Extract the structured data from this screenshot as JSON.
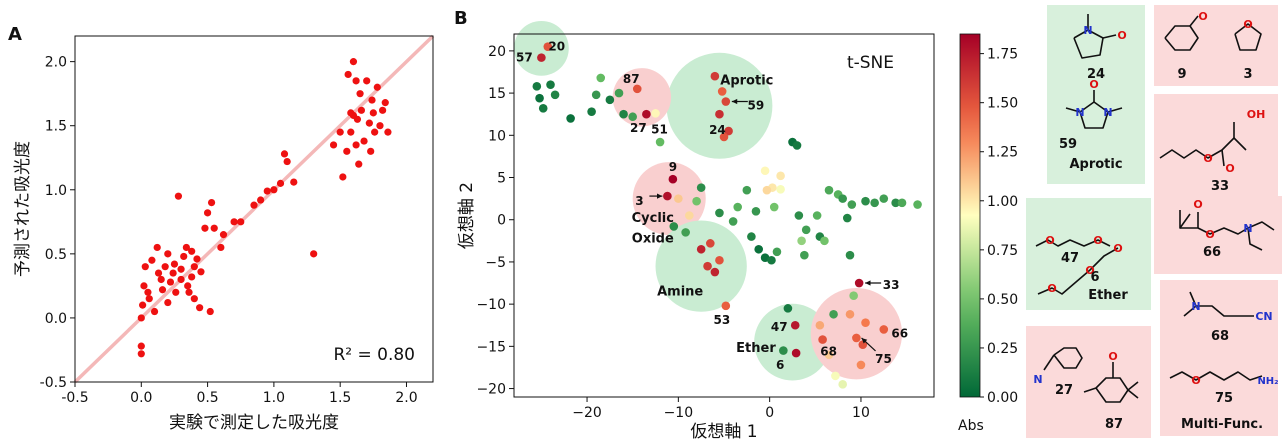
{
  "panel_a": {
    "letter": "A",
    "r2_text": "R² = 0.80"
  },
  "panel_b": {
    "letter": "B",
    "plot_title": "t-SNE",
    "cluster_labels": [
      "Aprotic",
      "Cyclic",
      "Oxide",
      "Amine",
      "Ether"
    ],
    "cbar_label": "Abs"
  },
  "colors": {
    "scatter_a": "#ee1111",
    "diag_line": "#f4b8b8",
    "green_box": "#d8f0dc",
    "pink_box": "#fbdada",
    "circle_green": "#c9ecd2",
    "circle_pink": "#f9cfcf"
  },
  "structures": {
    "boxes": [
      {
        "kind": "green",
        "title": "Aprotic",
        "labels": [
          "24",
          "59"
        ]
      },
      {
        "kind": "pink",
        "title": "",
        "labels": [
          "9",
          "3"
        ]
      },
      {
        "kind": "pink",
        "title": "",
        "labels": [
          "33",
          "66"
        ]
      },
      {
        "kind": "green",
        "title": "Ether",
        "labels": [
          "47",
          "6"
        ]
      },
      {
        "kind": "pink",
        "title": "Multi-Func.",
        "labels": [
          "68",
          "75"
        ]
      },
      {
        "kind": "pink",
        "title": "",
        "labels": [
          "27",
          "87"
        ]
      }
    ]
  },
  "chart_data": [
    {
      "type": "scatter",
      "title": "",
      "xlabel": "実験で測定した吸光度",
      "ylabel": "予測された吸光度",
      "xlim": [
        -0.5,
        2.2
      ],
      "ylim": [
        -0.5,
        2.2
      ],
      "xticks": [
        "-0.5",
        "0.0",
        "0.5",
        "1.0",
        "1.5",
        "2.0"
      ],
      "yticks": [
        "-0.5",
        "0.0",
        "0.5",
        "1.0",
        "1.5",
        "2.0"
      ],
      "grid": false,
      "reference_line": "y = x",
      "annotation": "R² = 0.80",
      "points": [
        [
          0.0,
          -0.28
        ],
        [
          0.0,
          -0.22
        ],
        [
          0.0,
          0.0
        ],
        [
          0.01,
          0.1
        ],
        [
          0.02,
          0.25
        ],
        [
          0.03,
          0.4
        ],
        [
          0.05,
          0.2
        ],
        [
          0.06,
          0.15
        ],
        [
          0.08,
          0.45
        ],
        [
          0.1,
          0.05
        ],
        [
          0.12,
          0.55
        ],
        [
          0.13,
          0.35
        ],
        [
          0.15,
          0.3
        ],
        [
          0.16,
          0.22
        ],
        [
          0.18,
          0.4
        ],
        [
          0.2,
          0.5
        ],
        [
          0.2,
          0.12
        ],
        [
          0.22,
          0.28
        ],
        [
          0.24,
          0.35
        ],
        [
          0.25,
          0.42
        ],
        [
          0.26,
          0.2
        ],
        [
          0.28,
          0.95
        ],
        [
          0.3,
          0.38
        ],
        [
          0.3,
          0.3
        ],
        [
          0.32,
          0.48
        ],
        [
          0.34,
          0.55
        ],
        [
          0.35,
          0.25
        ],
        [
          0.36,
          0.2
        ],
        [
          0.38,
          0.52
        ],
        [
          0.38,
          0.32
        ],
        [
          0.4,
          0.4
        ],
        [
          0.4,
          0.15
        ],
        [
          0.42,
          0.46
        ],
        [
          0.44,
          0.08
        ],
        [
          0.45,
          0.36
        ],
        [
          0.48,
          0.7
        ],
        [
          0.5,
          0.82
        ],
        [
          0.52,
          0.05
        ],
        [
          0.53,
          0.9
        ],
        [
          0.55,
          0.7
        ],
        [
          0.6,
          0.55
        ],
        [
          0.62,
          0.65
        ],
        [
          0.7,
          0.75
        ],
        [
          0.75,
          0.75
        ],
        [
          0.85,
          0.88
        ],
        [
          0.9,
          0.92
        ],
        [
          0.95,
          0.99
        ],
        [
          1.0,
          1.0
        ],
        [
          1.05,
          1.05
        ],
        [
          1.08,
          1.28
        ],
        [
          1.1,
          1.22
        ],
        [
          1.15,
          1.06
        ],
        [
          1.3,
          0.5
        ],
        [
          1.45,
          1.35
        ],
        [
          1.5,
          1.45
        ],
        [
          1.52,
          1.1
        ],
        [
          1.55,
          1.3
        ],
        [
          1.56,
          1.9
        ],
        [
          1.58,
          1.45
        ],
        [
          1.6,
          2.0
        ],
        [
          1.6,
          1.58
        ],
        [
          1.62,
          1.35
        ],
        [
          1.63,
          1.55
        ],
        [
          1.64,
          1.2
        ],
        [
          1.65,
          1.75
        ],
        [
          1.66,
          1.62
        ],
        [
          1.68,
          1.38
        ],
        [
          1.7,
          1.85
        ],
        [
          1.72,
          1.52
        ],
        [
          1.73,
          1.3
        ],
        [
          1.74,
          1.7
        ],
        [
          1.75,
          1.6
        ],
        [
          1.76,
          1.45
        ],
        [
          1.78,
          1.8
        ],
        [
          1.8,
          1.5
        ],
        [
          1.82,
          1.62
        ],
        [
          1.84,
          1.68
        ],
        [
          1.86,
          1.45
        ],
        [
          1.58,
          1.6
        ],
        [
          1.62,
          1.85
        ]
      ]
    },
    {
      "type": "scatter",
      "title": "t-SNE",
      "xlabel": "仮想軸 1",
      "ylabel": "仮想軸 2",
      "xlim": [
        -28,
        18
      ],
      "ylim": [
        -21,
        22
      ],
      "xticks": [
        "−20",
        "−10",
        "0",
        "10"
      ],
      "yticks": [
        "−20",
        "−15",
        "−10",
        "−5",
        "0",
        "5",
        "10",
        "15",
        "20"
      ],
      "colorbar": {
        "label": "Abs",
        "min": 0.0,
        "max": 1.85,
        "ticks": [
          "0.00",
          "0.25",
          "0.50",
          "0.75",
          "1.00",
          "1.25",
          "1.50",
          "1.75"
        ]
      },
      "highlighted_clusters": [
        {
          "label": "Aprotic",
          "kind": "green",
          "x": -5.5,
          "y": 13.5,
          "r": 5.8
        },
        {
          "label": "",
          "kind": "green",
          "x": -25.0,
          "y": 20.3,
          "r": 3.0
        },
        {
          "label": "",
          "kind": "pink",
          "x": -14.0,
          "y": 14.5,
          "r": 3.2
        },
        {
          "label": "Cyclic Oxide",
          "kind": "pink",
          "x": -11.0,
          "y": 2.5,
          "r": 4.0
        },
        {
          "label": "Amine",
          "kind": "green",
          "x": -7.5,
          "y": -5.5,
          "r": 5.0
        },
        {
          "label": "Ether",
          "kind": "green",
          "x": 2.5,
          "y": -14.5,
          "r": 4.2
        },
        {
          "label": "",
          "kind": "pink",
          "x": 9.5,
          "y": -13.5,
          "r": 5.0
        }
      ],
      "labeled_points": [
        {
          "label": "20",
          "x": -24.3,
          "y": 20.5
        },
        {
          "label": "57",
          "x": -25.0,
          "y": 19.2
        },
        {
          "label": "87",
          "x": -14.5,
          "y": 15.5
        },
        {
          "label": "27",
          "x": -13.5,
          "y": 12.5
        },
        {
          "label": "51",
          "x": -12.5,
          "y": 12.6
        },
        {
          "label": "59",
          "x": -4.8,
          "y": 14.0
        },
        {
          "label": "24",
          "x": -5.5,
          "y": 12.5
        },
        {
          "label": "9",
          "x": -10.6,
          "y": 4.8
        },
        {
          "label": "3",
          "x": -11.2,
          "y": 2.8
        },
        {
          "label": "53",
          "x": -4.8,
          "y": -10.2
        },
        {
          "label": "47",
          "x": 2.8,
          "y": -12.5
        },
        {
          "label": "6",
          "x": 2.9,
          "y": -15.8
        },
        {
          "label": "68",
          "x": 5.8,
          "y": -14.2
        },
        {
          "label": "33",
          "x": 9.8,
          "y": -7.5
        },
        {
          "label": "66",
          "x": 12.5,
          "y": -13.0
        },
        {
          "label": "75",
          "x": 10.5,
          "y": -14.6
        }
      ],
      "points": [
        {
          "x": -25.0,
          "y": 19.2,
          "abs": 1.7
        },
        {
          "x": -24.3,
          "y": 20.5,
          "abs": 1.5
        },
        {
          "x": -25.5,
          "y": 15.8,
          "abs": 0.1
        },
        {
          "x": -24.0,
          "y": 16.0,
          "abs": 0.1
        },
        {
          "x": -25.2,
          "y": 14.4,
          "abs": 0.05
        },
        {
          "x": -23.5,
          "y": 14.8,
          "abs": 0.15
        },
        {
          "x": -24.8,
          "y": 13.2,
          "abs": 0.1
        },
        {
          "x": -21.8,
          "y": 12.0,
          "abs": 0.05
        },
        {
          "x": -19.5,
          "y": 12.8,
          "abs": 0.1
        },
        {
          "x": -18.5,
          "y": 16.8,
          "abs": 0.45
        },
        {
          "x": -19.0,
          "y": 14.8,
          "abs": 0.25
        },
        {
          "x": -17.5,
          "y": 14.2,
          "abs": 0.1
        },
        {
          "x": -16.5,
          "y": 15.0,
          "abs": 0.3
        },
        {
          "x": -16.0,
          "y": 12.5,
          "abs": 0.15
        },
        {
          "x": -15.0,
          "y": 12.2,
          "abs": 0.3
        },
        {
          "x": -14.5,
          "y": 15.5,
          "abs": 1.5
        },
        {
          "x": -13.5,
          "y": 12.5,
          "abs": 1.8
        },
        {
          "x": -12.5,
          "y": 12.6,
          "abs": 0.95
        },
        {
          "x": -12.0,
          "y": 9.2,
          "abs": 0.45
        },
        {
          "x": -6.0,
          "y": 17.0,
          "abs": 1.6
        },
        {
          "x": -5.2,
          "y": 15.2,
          "abs": 1.45
        },
        {
          "x": -4.8,
          "y": 14.0,
          "abs": 1.55
        },
        {
          "x": -5.5,
          "y": 12.5,
          "abs": 1.65
        },
        {
          "x": -4.5,
          "y": 10.5,
          "abs": 1.6
        },
        {
          "x": -5.0,
          "y": 9.8,
          "abs": 1.5
        },
        {
          "x": -10.6,
          "y": 4.8,
          "abs": 1.85
        },
        {
          "x": -11.2,
          "y": 2.8,
          "abs": 1.78
        },
        {
          "x": -10.0,
          "y": 2.5,
          "abs": 1.1
        },
        {
          "x": -7.5,
          "y": -3.5,
          "abs": 1.7
        },
        {
          "x": -6.5,
          "y": -2.8,
          "abs": 1.55
        },
        {
          "x": -6.8,
          "y": -5.5,
          "abs": 1.6
        },
        {
          "x": -5.5,
          "y": -4.8,
          "abs": 1.5
        },
        {
          "x": -6.0,
          "y": -6.2,
          "abs": 1.7
        },
        {
          "x": -4.8,
          "y": -10.2,
          "abs": 1.45
        },
        {
          "x": -0.5,
          "y": -4.5,
          "abs": 0.05
        },
        {
          "x": 0.2,
          "y": -4.8,
          "abs": 0.1
        },
        {
          "x": 0.8,
          "y": -3.8,
          "abs": 0.3
        },
        {
          "x": 2.8,
          "y": -12.5,
          "abs": 1.75
        },
        {
          "x": 2.9,
          "y": -15.8,
          "abs": 1.8
        },
        {
          "x": 2.0,
          "y": -10.5,
          "abs": 0.1
        },
        {
          "x": 1.5,
          "y": -15.5,
          "abs": 0.2
        },
        {
          "x": 5.8,
          "y": -14.2,
          "abs": 1.5
        },
        {
          "x": 5.5,
          "y": -12.5,
          "abs": 1.2
        },
        {
          "x": 6.5,
          "y": -16.0,
          "abs": 1.1
        },
        {
          "x": 7.2,
          "y": -18.5,
          "abs": 0.9
        },
        {
          "x": 8.0,
          "y": -19.5,
          "abs": 0.85
        },
        {
          "x": 7.0,
          "y": -11.2,
          "abs": 0.3
        },
        {
          "x": 9.8,
          "y": -7.5,
          "abs": 1.8
        },
        {
          "x": 9.2,
          "y": -9.0,
          "abs": 0.55
        },
        {
          "x": 8.8,
          "y": -11.2,
          "abs": 1.25
        },
        {
          "x": 9.5,
          "y": -14.0,
          "abs": 1.45
        },
        {
          "x": 10.2,
          "y": -14.8,
          "abs": 1.5
        },
        {
          "x": 12.5,
          "y": -13.0,
          "abs": 1.45
        },
        {
          "x": 10.0,
          "y": -17.2,
          "abs": 1.3
        },
        {
          "x": 10.5,
          "y": -12.2,
          "abs": 1.35
        },
        {
          "x": -10.5,
          "y": -0.8,
          "abs": 0.2
        },
        {
          "x": -8.8,
          "y": 0.5,
          "abs": 1.05
        },
        {
          "x": -8.0,
          "y": 2.2,
          "abs": 0.5
        },
        {
          "x": -7.5,
          "y": 3.8,
          "abs": 0.2
        },
        {
          "x": -9.2,
          "y": -1.5,
          "abs": 0.3
        },
        {
          "x": -5.5,
          "y": 0.8,
          "abs": 0.2
        },
        {
          "x": -4.0,
          "y": -0.2,
          "abs": 0.3
        },
        {
          "x": -3.5,
          "y": 1.5,
          "abs": 0.4
        },
        {
          "x": -2.5,
          "y": 3.5,
          "abs": 0.3
        },
        {
          "x": -2.0,
          "y": -2.0,
          "abs": 0.15
        },
        {
          "x": -1.5,
          "y": 1.0,
          "abs": 0.25
        },
        {
          "x": -1.2,
          "y": -3.5,
          "abs": 0.05
        },
        {
          "x": -0.5,
          "y": 5.8,
          "abs": 0.95
        },
        {
          "x": 0.3,
          "y": 3.8,
          "abs": 1.0
        },
        {
          "x": -0.3,
          "y": 3.5,
          "abs": 1.05
        },
        {
          "x": 1.2,
          "y": 5.2,
          "abs": 1.0
        },
        {
          "x": 1.2,
          "y": 3.6,
          "abs": 0.9
        },
        {
          "x": 0.5,
          "y": 1.5,
          "abs": 0.5
        },
        {
          "x": 2.5,
          "y": 9.2,
          "abs": 0.05
        },
        {
          "x": 3.0,
          "y": 8.8,
          "abs": 0.1
        },
        {
          "x": 3.2,
          "y": 0.5,
          "abs": 0.2
        },
        {
          "x": 4.0,
          "y": -1.2,
          "abs": 0.3
        },
        {
          "x": 3.5,
          "y": -2.5,
          "abs": 0.6
        },
        {
          "x": 3.8,
          "y": -4.2,
          "abs": 0.3
        },
        {
          "x": 5.5,
          "y": -2.0,
          "abs": 0.15
        },
        {
          "x": 5.2,
          "y": 0.5,
          "abs": 0.4
        },
        {
          "x": 6.0,
          "y": -2.5,
          "abs": 0.5
        },
        {
          "x": 6.5,
          "y": 3.5,
          "abs": 0.35
        },
        {
          "x": 7.5,
          "y": 3.0,
          "abs": 0.4
        },
        {
          "x": 8.0,
          "y": 2.5,
          "abs": 0.25
        },
        {
          "x": 8.5,
          "y": 0.2,
          "abs": 0.15
        },
        {
          "x": 8.8,
          "y": -4.2,
          "abs": 0.2
        },
        {
          "x": 9.0,
          "y": 1.8,
          "abs": 0.3
        },
        {
          "x": 10.5,
          "y": 2.2,
          "abs": 0.2
        },
        {
          "x": 11.5,
          "y": 2.0,
          "abs": 0.25
        },
        {
          "x": 12.5,
          "y": 2.5,
          "abs": 0.3
        },
        {
          "x": 13.8,
          "y": 2.0,
          "abs": 0.2
        },
        {
          "x": 14.5,
          "y": 2.0,
          "abs": 0.35
        },
        {
          "x": 16.2,
          "y": 1.8,
          "abs": 0.4
        }
      ]
    }
  ]
}
